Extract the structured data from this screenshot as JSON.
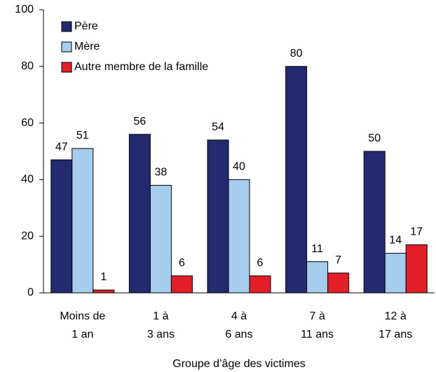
{
  "chart_data": {
    "type": "bar",
    "x_label": "Groupe d’âge des victimes",
    "categories": [
      [
        "Moins de",
        "1 an"
      ],
      [
        "1 à",
        "3 ans"
      ],
      [
        "4 à",
        "6 ans"
      ],
      [
        "7 à",
        "11 ans"
      ],
      [
        "12 à",
        "17 ans"
      ]
    ],
    "series": [
      {
        "name": "Père",
        "color": "#232a6f",
        "values": [
          47,
          56,
          54,
          80,
          50
        ]
      },
      {
        "name": "Mère",
        "color": "#a6cdee",
        "values": [
          51,
          38,
          40,
          11,
          14
        ]
      },
      {
        "name": "Autre membre de la famille",
        "color": "#e31e26",
        "values": [
          1,
          6,
          6,
          7,
          17
        ]
      }
    ],
    "ylim": [
      0,
      100
    ],
    "yticks": [
      0,
      20,
      40,
      60,
      80,
      100
    ],
    "grid": false,
    "legend": "top-left"
  }
}
